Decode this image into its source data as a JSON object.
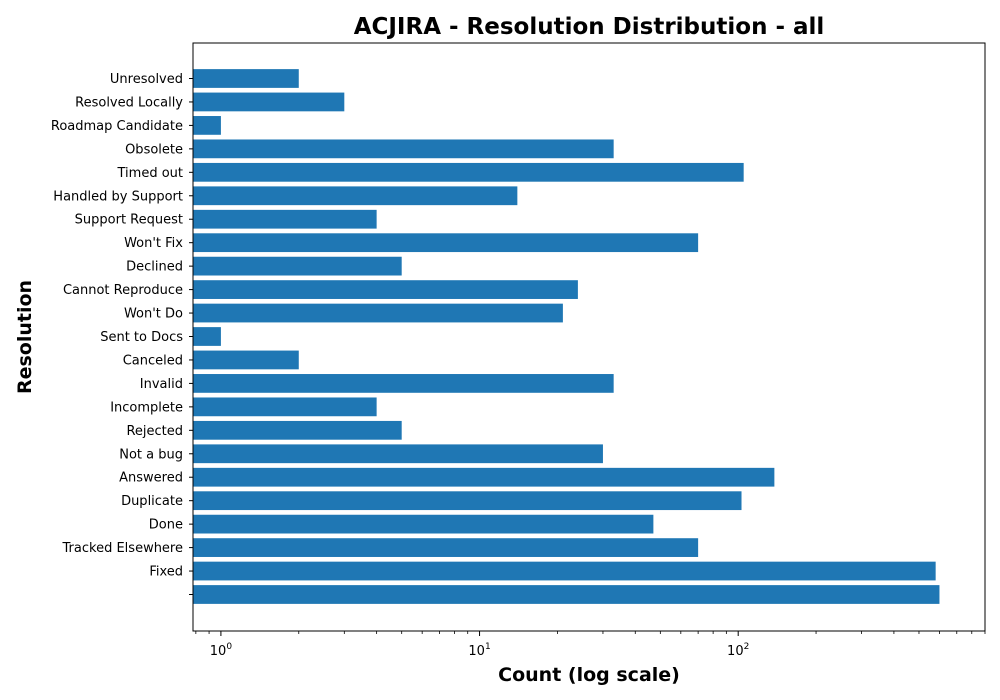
{
  "chart_data": {
    "type": "bar",
    "orientation": "horizontal",
    "title": "ACJIRA - Resolution Distribution - all",
    "xlabel": "Count (log scale)",
    "ylabel": "Resolution",
    "xscale": "log",
    "xlim": [
      0.78,
      900
    ],
    "xticks": [
      {
        "value": 1,
        "base": "10",
        "exp": "0"
      },
      {
        "value": 10,
        "base": "10",
        "exp": "1"
      },
      {
        "value": 100,
        "base": "10",
        "exp": "2"
      }
    ],
    "bar_color": "#1f77b4",
    "categories": [
      "Unresolved",
      "Resolved Locally",
      "Roadmap Candidate",
      "Obsolete",
      "Timed out",
      "Handled by Support",
      "Support Request",
      "Won't Fix",
      "Declined",
      "Cannot Reproduce",
      "Won't Do",
      "Sent to Docs",
      "Canceled",
      "Invalid",
      "Incomplete",
      "Rejected",
      "Not a bug",
      "Answered",
      "Duplicate",
      "Done",
      "Tracked Elsewhere",
      "Fixed",
      ""
    ],
    "values": [
      2,
      3,
      1,
      33,
      105,
      14,
      4,
      70,
      5,
      24,
      21,
      1,
      2,
      33,
      4,
      5,
      30,
      138,
      103,
      47,
      70,
      580,
      600
    ]
  }
}
